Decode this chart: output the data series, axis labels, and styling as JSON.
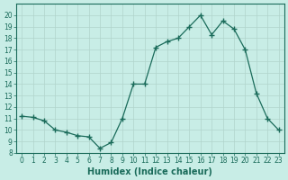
{
  "x": [
    0,
    1,
    2,
    3,
    4,
    5,
    6,
    7,
    8,
    9,
    10,
    11,
    12,
    13,
    14,
    15,
    16,
    17,
    18,
    19,
    20,
    21,
    22,
    23
  ],
  "y": [
    11.2,
    11.1,
    10.8,
    10.0,
    9.8,
    9.5,
    9.4,
    8.4,
    8.9,
    11.0,
    14.0,
    14.0,
    17.2,
    17.7,
    18.0,
    19.0,
    20.0,
    18.3,
    19.5,
    18.8,
    17.0,
    13.2,
    11.0,
    10.0
  ],
  "xlabel": "Humidex (Indice chaleur)",
  "xlim": [
    -0.5,
    23.5
  ],
  "ylim": [
    8,
    21
  ],
  "yticks": [
    8,
    9,
    10,
    11,
    12,
    13,
    14,
    15,
    16,
    17,
    18,
    19,
    20
  ],
  "xticks": [
    0,
    1,
    2,
    3,
    4,
    5,
    6,
    7,
    8,
    9,
    10,
    11,
    12,
    13,
    14,
    15,
    16,
    17,
    18,
    19,
    20,
    21,
    22,
    23
  ],
  "line_color": "#1a6b5a",
  "marker": "+",
  "marker_size": 4,
  "bg_color": "#c8ede6",
  "grid_color": "#b0d4cc",
  "axis_color": "#1a6b5a",
  "tick_color": "#1a6b5a",
  "label_fontsize": 5.5,
  "xlabel_fontsize": 7.0
}
